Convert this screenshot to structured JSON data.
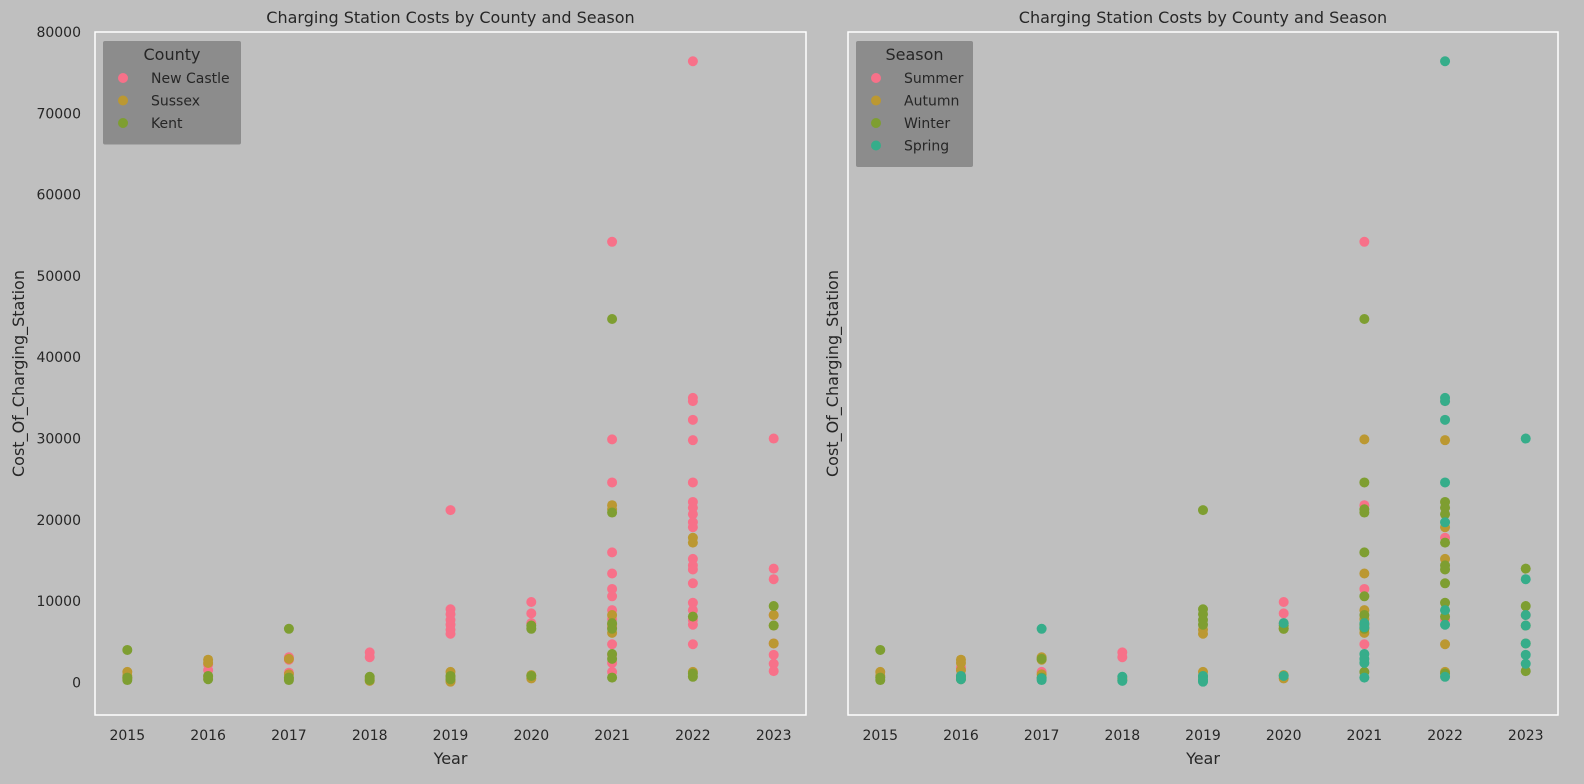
{
  "chart_data": [
    {
      "type": "scatter",
      "title": "Charging Station Costs by County and Season",
      "xlabel": "Year",
      "ylabel": "Cost_Of_Charging_Station",
      "xlim": [
        2014.6,
        2023.4
      ],
      "ylim": [
        -4000,
        80000
      ],
      "xticks": [
        "2015",
        "2016",
        "2017",
        "2018",
        "2019",
        "2020",
        "2021",
        "2022",
        "2023"
      ],
      "yticks": [
        "0",
        "10000",
        "20000",
        "30000",
        "40000",
        "50000",
        "60000",
        "70000",
        "80000"
      ],
      "grid": false,
      "legend": {
        "title": "County",
        "position": "top-left"
      },
      "series": [
        {
          "name": "New Castle",
          "color": "#f77189",
          "points": [
            [
              2016,
              2200
            ],
            [
              2016,
              1500
            ],
            [
              2016,
              700
            ],
            [
              2017,
              3100
            ],
            [
              2017,
              2800
            ],
            [
              2017,
              1200
            ],
            [
              2018,
              3700
            ],
            [
              2018,
              3100
            ],
            [
              2019,
              21200
            ],
            [
              2019,
              9000
            ],
            [
              2019,
              8400
            ],
            [
              2019,
              7700
            ],
            [
              2019,
              7100
            ],
            [
              2019,
              6500
            ],
            [
              2019,
              6000
            ],
            [
              2020,
              9900
            ],
            [
              2020,
              8500
            ],
            [
              2020,
              7300
            ],
            [
              2021,
              54200
            ],
            [
              2021,
              29900
            ],
            [
              2021,
              24600
            ],
            [
              2021,
              16000
            ],
            [
              2021,
              13400
            ],
            [
              2021,
              11500
            ],
            [
              2021,
              10600
            ],
            [
              2021,
              8900
            ],
            [
              2021,
              7800
            ],
            [
              2021,
              6800
            ],
            [
              2021,
              4700
            ],
            [
              2021,
              3400
            ],
            [
              2021,
              2400
            ],
            [
              2021,
              1300
            ],
            [
              2022,
              76400
            ],
            [
              2022,
              35000
            ],
            [
              2022,
              34600
            ],
            [
              2022,
              32300
            ],
            [
              2022,
              29800
            ],
            [
              2022,
              24600
            ],
            [
              2022,
              22200
            ],
            [
              2022,
              21500
            ],
            [
              2022,
              20700
            ],
            [
              2022,
              19700
            ],
            [
              2022,
              19100
            ],
            [
              2022,
              15200
            ],
            [
              2022,
              14400
            ],
            [
              2022,
              13900
            ],
            [
              2022,
              12200
            ],
            [
              2022,
              9800
            ],
            [
              2022,
              8900
            ],
            [
              2022,
              7700
            ],
            [
              2022,
              7100
            ],
            [
              2022,
              4700
            ],
            [
              2023,
              30000
            ],
            [
              2023,
              14000
            ],
            [
              2023,
              12700
            ],
            [
              2023,
              8300
            ],
            [
              2023,
              4800
            ],
            [
              2023,
              3400
            ],
            [
              2023,
              2300
            ],
            [
              2023,
              1400
            ]
          ]
        },
        {
          "name": "Sussex",
          "color": "#bb9832",
          "points": [
            [
              2015,
              1300
            ],
            [
              2015,
              800
            ],
            [
              2015,
              500
            ],
            [
              2016,
              2800
            ],
            [
              2016,
              2400
            ],
            [
              2017,
              2900
            ],
            [
              2017,
              1000
            ],
            [
              2017,
              500
            ],
            [
              2018,
              500
            ],
            [
              2018,
              200
            ],
            [
              2019,
              1300
            ],
            [
              2019,
              700
            ],
            [
              2019,
              200
            ],
            [
              2019,
              100
            ],
            [
              2020,
              900
            ],
            [
              2020,
              500
            ],
            [
              2021,
              21800
            ],
            [
              2021,
              21300
            ],
            [
              2021,
              8300
            ],
            [
              2021,
              7100
            ],
            [
              2021,
              6100
            ],
            [
              2022,
              17800
            ],
            [
              2022,
              17200
            ],
            [
              2022,
              1300
            ],
            [
              2023,
              8300
            ],
            [
              2023,
              7000
            ],
            [
              2023,
              4800
            ]
          ]
        },
        {
          "name": "Kent",
          "color": "#7e9e31",
          "points": [
            [
              2015,
              4000
            ],
            [
              2015,
              600
            ],
            [
              2015,
              300
            ],
            [
              2016,
              800
            ],
            [
              2016,
              400
            ],
            [
              2017,
              6600
            ],
            [
              2017,
              600
            ],
            [
              2017,
              300
            ],
            [
              2018,
              700
            ],
            [
              2018,
              300
            ],
            [
              2019,
              800
            ],
            [
              2019,
              400
            ],
            [
              2020,
              7000
            ],
            [
              2020,
              6600
            ],
            [
              2020,
              800
            ],
            [
              2021,
              44700
            ],
            [
              2021,
              20900
            ],
            [
              2021,
              7300
            ],
            [
              2021,
              6600
            ],
            [
              2021,
              3500
            ],
            [
              2021,
              2900
            ],
            [
              2021,
              600
            ],
            [
              2022,
              8100
            ],
            [
              2022,
              1100
            ],
            [
              2022,
              700
            ],
            [
              2023,
              9400
            ],
            [
              2023,
              7000
            ]
          ]
        }
      ]
    },
    {
      "type": "scatter",
      "title": "Charging Station Costs by County and Season",
      "xlabel": "Year",
      "ylabel": "Cost_Of_Charging_Station",
      "xlim": [
        2014.6,
        2023.4
      ],
      "ylim": [
        -4000,
        80000
      ],
      "xticks": [
        "2015",
        "2016",
        "2017",
        "2018",
        "2019",
        "2020",
        "2021",
        "2022",
        "2023"
      ],
      "grid": false,
      "legend": {
        "title": "Season",
        "position": "top-left"
      },
      "series": [
        {
          "name": "Summer",
          "color": "#f77189",
          "points": [
            [
              2016,
              1800
            ],
            [
              2016,
              900
            ],
            [
              2017,
              1300
            ],
            [
              2018,
              3700
            ],
            [
              2018,
              3100
            ],
            [
              2019,
              800
            ],
            [
              2020,
              9900
            ],
            [
              2020,
              8500
            ],
            [
              2020,
              7300
            ],
            [
              2021,
              54200
            ],
            [
              2021,
              21800
            ],
            [
              2021,
              11500
            ],
            [
              2021,
              4700
            ],
            [
              2022,
              34600
            ],
            [
              2022,
              17800
            ],
            [
              2022,
              7700
            ],
            [
              2023,
              8300
            ]
          ]
        },
        {
          "name": "Autumn",
          "color": "#bb9832",
          "points": [
            [
              2015,
              1300
            ],
            [
              2015,
              800
            ],
            [
              2016,
              2800
            ],
            [
              2016,
              2400
            ],
            [
              2016,
              1500
            ],
            [
              2017,
              3100
            ],
            [
              2017,
              2800
            ],
            [
              2017,
              1000
            ],
            [
              2018,
              500
            ],
            [
              2019,
              6500
            ],
            [
              2019,
              6000
            ],
            [
              2019,
              1300
            ],
            [
              2020,
              6600
            ],
            [
              2020,
              900
            ],
            [
              2020,
              500
            ],
            [
              2021,
              29900
            ],
            [
              2021,
              13400
            ],
            [
              2021,
              8900
            ],
            [
              2021,
              7800
            ],
            [
              2021,
              6100
            ],
            [
              2022,
              29800
            ],
            [
              2022,
              19100
            ],
            [
              2022,
              15200
            ],
            [
              2022,
              4700
            ],
            [
              2022,
              1300
            ],
            [
              2023,
              7000
            ],
            [
              2023,
              4800
            ]
          ]
        },
        {
          "name": "Winter",
          "color": "#7e9e31",
          "points": [
            [
              2015,
              4000
            ],
            [
              2015,
              600
            ],
            [
              2015,
              300
            ],
            [
              2016,
              700
            ],
            [
              2016,
              400
            ],
            [
              2017,
              2900
            ],
            [
              2017,
              600
            ],
            [
              2018,
              300
            ],
            [
              2019,
              21200
            ],
            [
              2019,
              9000
            ],
            [
              2019,
              8400
            ],
            [
              2019,
              7700
            ],
            [
              2019,
              7100
            ],
            [
              2019,
              700
            ],
            [
              2020,
              7000
            ],
            [
              2020,
              6600
            ],
            [
              2021,
              44700
            ],
            [
              2021,
              24600
            ],
            [
              2021,
              21300
            ],
            [
              2021,
              20900
            ],
            [
              2021,
              16000
            ],
            [
              2021,
              10600
            ],
            [
              2021,
              8300
            ],
            [
              2021,
              7100
            ],
            [
              2021,
              6600
            ],
            [
              2021,
              1300
            ],
            [
              2022,
              22200
            ],
            [
              2022,
              21500
            ],
            [
              2022,
              20700
            ],
            [
              2022,
              17200
            ],
            [
              2022,
              14400
            ],
            [
              2022,
              13900
            ],
            [
              2022,
              12200
            ],
            [
              2022,
              9800
            ],
            [
              2022,
              8100
            ],
            [
              2022,
              1100
            ],
            [
              2023,
              14000
            ],
            [
              2023,
              9400
            ],
            [
              2023,
              1400
            ]
          ]
        },
        {
          "name": "Spring",
          "color": "#36ad8a",
          "points": [
            [
              2016,
              800
            ],
            [
              2016,
              400
            ],
            [
              2017,
              6600
            ],
            [
              2017,
              500
            ],
            [
              2017,
              300
            ],
            [
              2018,
              700
            ],
            [
              2018,
              200
            ],
            [
              2019,
              800
            ],
            [
              2019,
              400
            ],
            [
              2019,
              200
            ],
            [
              2019,
              100
            ],
            [
              2020,
              7300
            ],
            [
              2020,
              800
            ],
            [
              2021,
              7300
            ],
            [
              2021,
              6800
            ],
            [
              2021,
              3500
            ],
            [
              2021,
              2900
            ],
            [
              2021,
              2400
            ],
            [
              2021,
              600
            ],
            [
              2022,
              76400
            ],
            [
              2022,
              35000
            ],
            [
              2022,
              34600
            ],
            [
              2022,
              32300
            ],
            [
              2022,
              24600
            ],
            [
              2022,
              19700
            ],
            [
              2022,
              8900
            ],
            [
              2022,
              7100
            ],
            [
              2022,
              700
            ],
            [
              2023,
              30000
            ],
            [
              2023,
              12700
            ],
            [
              2023,
              8300
            ],
            [
              2023,
              7000
            ],
            [
              2023,
              4800
            ],
            [
              2023,
              3400
            ],
            [
              2023,
              2300
            ]
          ]
        }
      ]
    }
  ]
}
